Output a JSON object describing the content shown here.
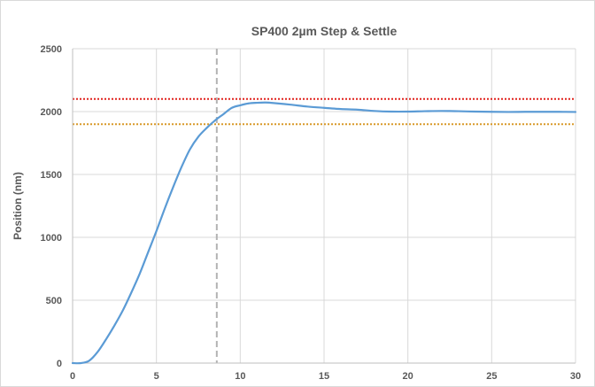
{
  "chart_data": {
    "type": "line",
    "title": "SP400 2µm Step & Settle",
    "xlabel": "",
    "ylabel": "Position (nm)",
    "xlim": [
      0,
      30
    ],
    "ylim": [
      0,
      2500
    ],
    "xticks": [
      "0",
      "5",
      "10",
      "15",
      "20",
      "25",
      "30"
    ],
    "yticks": [
      "0",
      "500",
      "1000",
      "1500",
      "2000",
      "2500"
    ],
    "grid": true,
    "legend": "none",
    "series": [
      {
        "color": "#5b9bd5",
        "x": [
          0,
          0.5,
          1,
          1.5,
          2,
          2.5,
          3,
          3.5,
          4,
          4.5,
          5,
          5.5,
          6,
          6.5,
          7,
          7.5,
          8,
          8.5,
          9,
          9.5,
          10,
          10.5,
          11,
          11.5,
          12,
          13,
          14,
          15,
          16,
          17,
          18,
          19,
          20,
          21,
          22,
          23,
          24,
          25,
          26,
          27,
          28,
          29,
          30
        ],
        "y": [
          0,
          0,
          20,
          90,
          190,
          300,
          420,
          560,
          710,
          880,
          1050,
          1230,
          1400,
          1560,
          1700,
          1800,
          1870,
          1930,
          1980,
          2030,
          2050,
          2065,
          2070,
          2072,
          2068,
          2055,
          2040,
          2030,
          2020,
          2015,
          2005,
          2000,
          2000,
          2003,
          2005,
          2003,
          2000,
          1998,
          1997,
          1998,
          1998,
          1998,
          1997
        ]
      }
    ],
    "reference_lines": [
      {
        "orientation": "horizontal",
        "value": 2100,
        "style": "dotted",
        "color": "#e0221e"
      },
      {
        "orientation": "horizontal",
        "value": 1900,
        "style": "dotted",
        "color": "#d89a2a"
      },
      {
        "orientation": "vertical",
        "value": 8.6,
        "style": "dashed",
        "color": "#b3b3b3"
      }
    ]
  }
}
